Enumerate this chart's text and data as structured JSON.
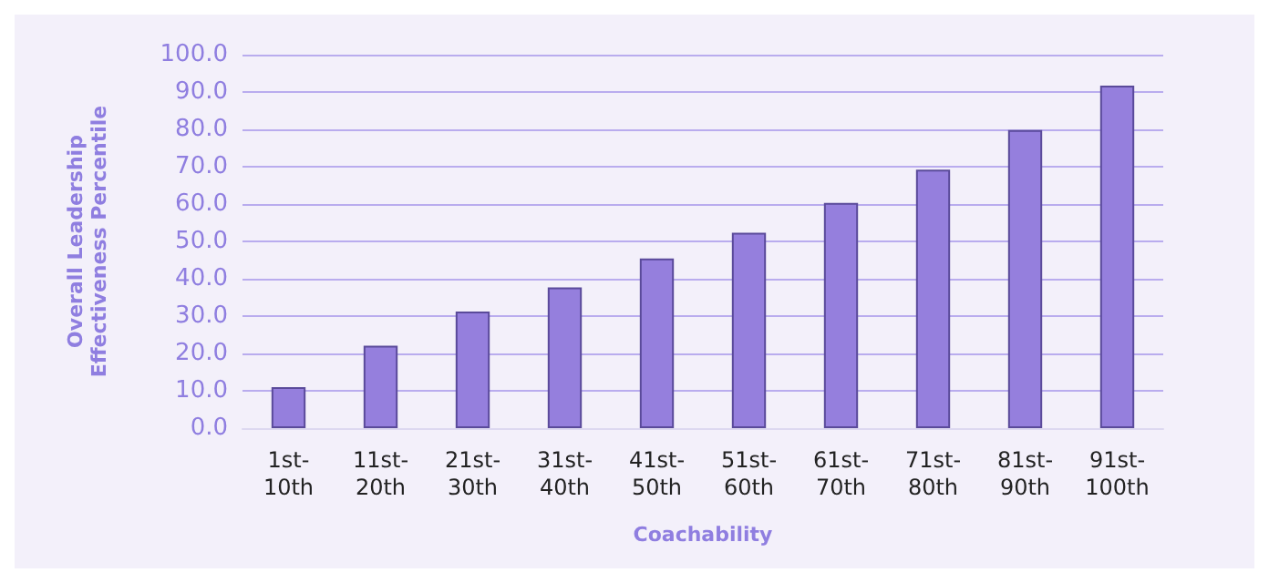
{
  "chart_data": {
    "type": "bar",
    "xlabel": "Coachability",
    "ylabel": "Overall Leadership\nEffectiveness Percentile",
    "categories": [
      "1st-\n10th",
      "11st-\n20th",
      "21st-\n30th",
      "31st-\n40th",
      "41st-\n50th",
      "51st-\n60th",
      "61st-\n70th",
      "71st-\n80th",
      "81st-\n90th",
      "91st-\n100th"
    ],
    "values": [
      11.0,
      22.1,
      31.2,
      37.7,
      45.4,
      52.3,
      60.3,
      69.2,
      79.8,
      91.7
    ],
    "color": "#957fdd",
    "ylim": [
      0,
      100
    ],
    "yticks": [
      {
        "value": 0,
        "label": "0.0"
      },
      {
        "value": 10,
        "label": "10.0"
      },
      {
        "value": 20,
        "label": "20.0"
      },
      {
        "value": 30,
        "label": "30.0"
      },
      {
        "value": 40,
        "label": "40.0"
      },
      {
        "value": 50,
        "label": "50.0"
      },
      {
        "value": 60,
        "label": "60.0"
      },
      {
        "value": 70,
        "label": "70.0"
      },
      {
        "value": 80,
        "label": "80.0"
      },
      {
        "value": 90,
        "label": "90.0"
      },
      {
        "value": 100,
        "label": "100.0"
      }
    ],
    "grid": "y"
  }
}
